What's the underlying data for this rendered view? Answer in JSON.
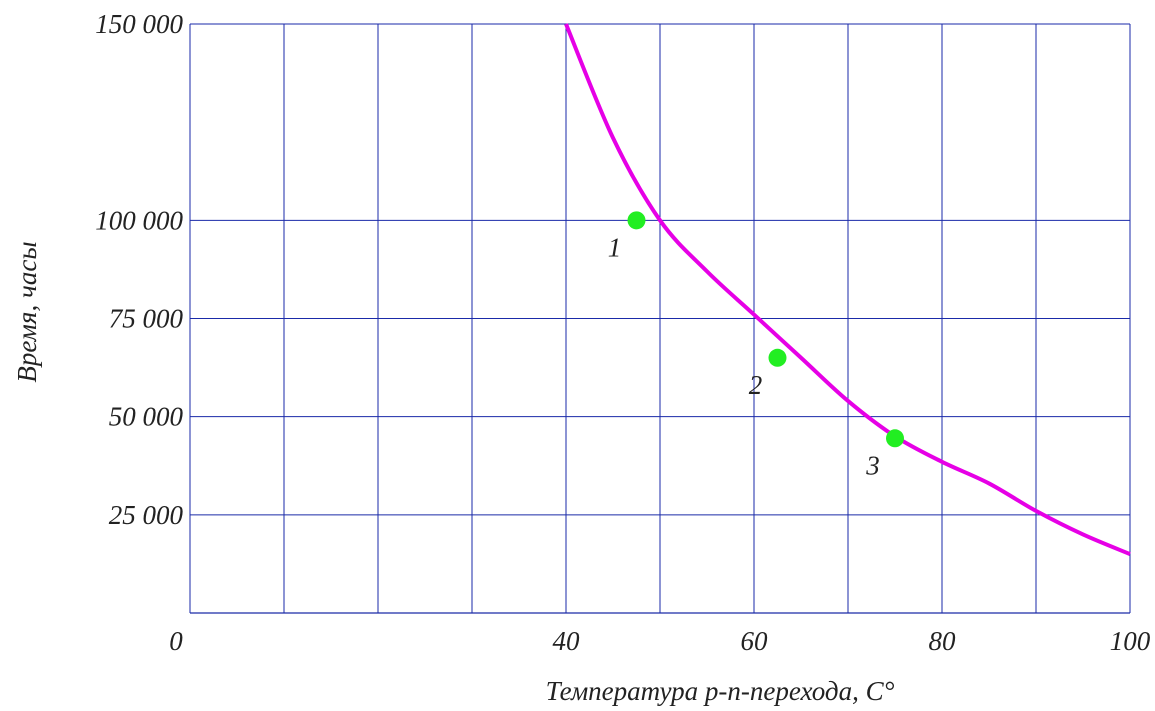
{
  "chart_data": {
    "type": "line",
    "title": "",
    "xlabel": "Температура p-n-перехода, C°",
    "ylabel": "Время, часы",
    "xlim": [
      0,
      100
    ],
    "ylim": [
      0,
      150000
    ],
    "x_ticks": [
      0,
      40,
      60,
      80,
      100
    ],
    "x_tick_labels": [
      "0",
      "40",
      "60",
      "80",
      "100"
    ],
    "x_grid_positions": [
      0,
      10,
      20,
      30,
      40,
      50,
      60,
      70,
      80,
      90,
      100
    ],
    "y_ticks": [
      25000,
      50000,
      75000,
      100000,
      150000
    ],
    "y_tick_labels": [
      "25 000",
      "50 000",
      "75 000",
      "100 000",
      "150 000"
    ],
    "grid": true,
    "grid_color": "#1a2aa8",
    "curve_color": "#e600e6",
    "point_color": "#22ee22",
    "series": [
      {
        "x": [
          40,
          45,
          50,
          55,
          60,
          65,
          70,
          75,
          80,
          85,
          90,
          95,
          100
        ],
        "y": [
          150000,
          121000,
          100000,
          87000,
          76000,
          65000,
          54000,
          45000,
          38500,
          33000,
          26000,
          20000,
          15000
        ]
      }
    ],
    "points": [
      {
        "label": "1",
        "x": 47.5,
        "y": 100000
      },
      {
        "label": "2",
        "x": 62.5,
        "y": 65000
      },
      {
        "label": "3",
        "x": 75,
        "y": 44500
      }
    ]
  }
}
